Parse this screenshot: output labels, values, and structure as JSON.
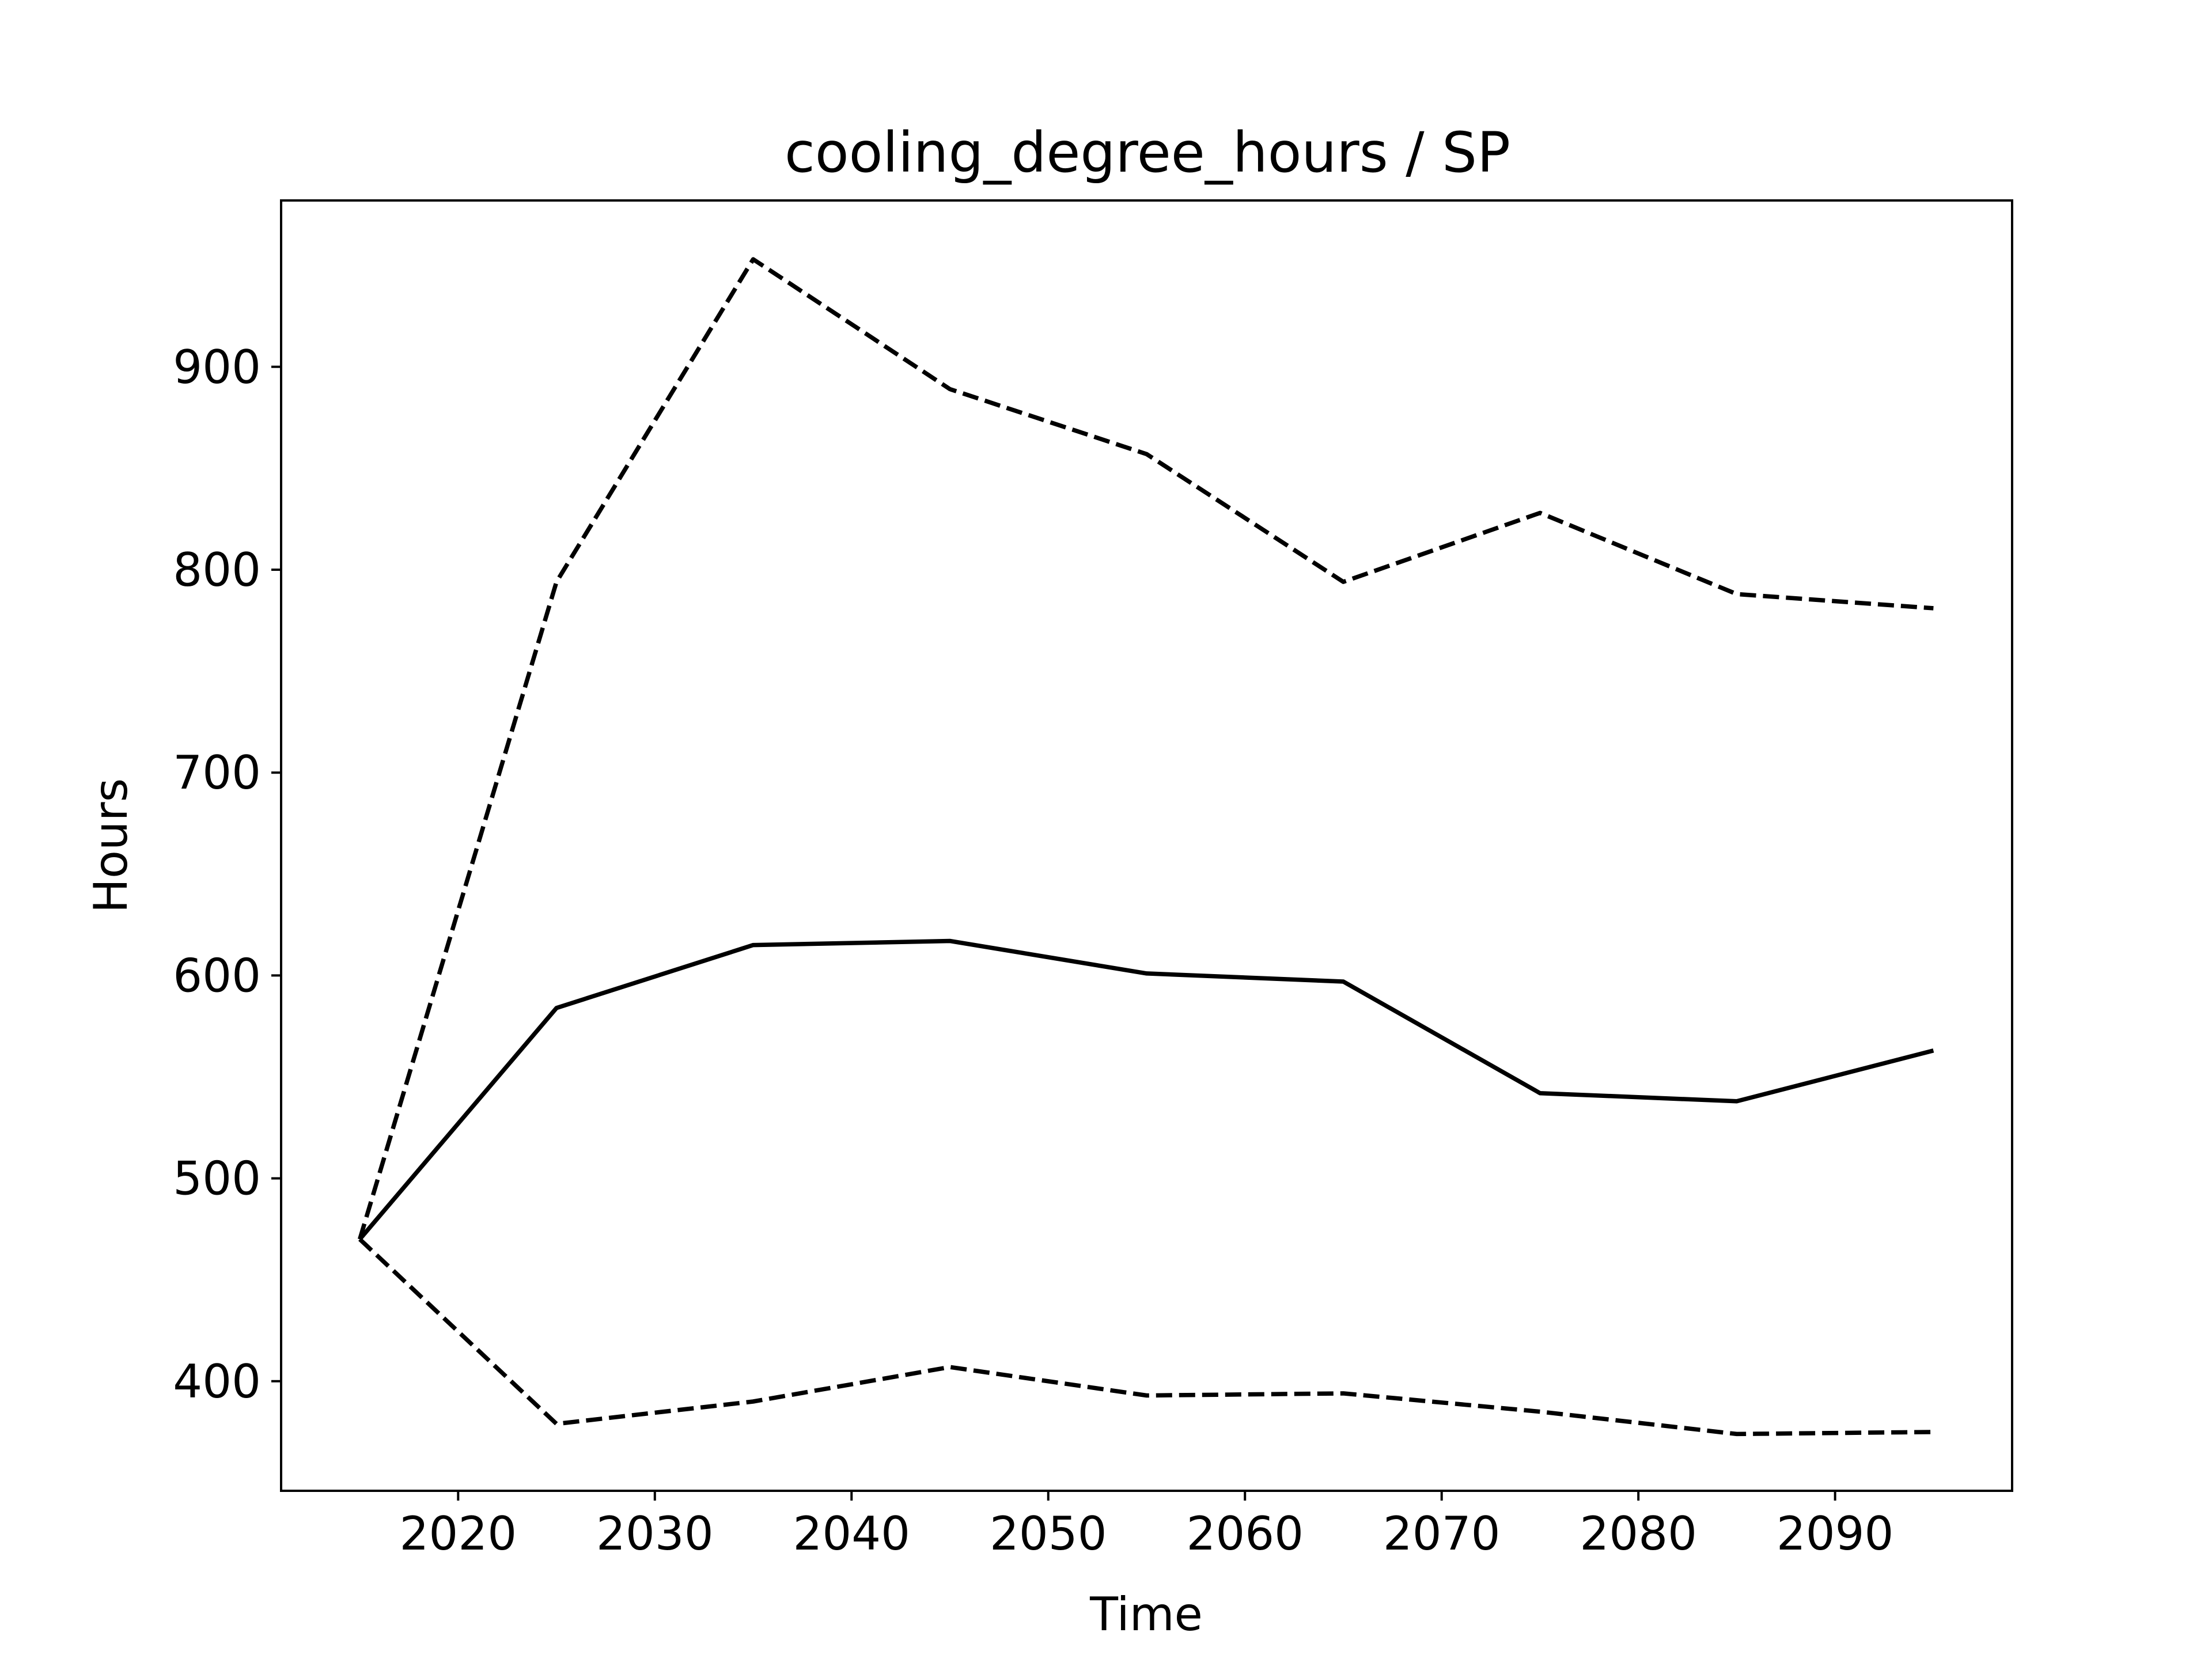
{
  "chart_data": {
    "type": "line",
    "title": "cooling_degree_hours / SP",
    "xlabel": "Time",
    "ylabel": "Hours",
    "xlim": [
      2011,
      2099
    ],
    "ylim": [
      346,
      982
    ],
    "xticks": [
      2020,
      2030,
      2040,
      2050,
      2060,
      2070,
      2080,
      2090
    ],
    "yticks": [
      400,
      500,
      600,
      700,
      800,
      900
    ],
    "x": [
      2015,
      2025,
      2035,
      2045,
      2055,
      2065,
      2075,
      2085,
      2095
    ],
    "series": [
      {
        "style": "dashed",
        "color": "#000000",
        "values": [
          470,
          794,
          953,
          889,
          857,
          794,
          828,
          788,
          781
        ]
      },
      {
        "style": "solid",
        "color": "#000000",
        "values": [
          470,
          584,
          615,
          617,
          601,
          597,
          542,
          538,
          563
        ]
      },
      {
        "style": "dashed",
        "color": "#000000",
        "values": [
          470,
          379,
          390,
          407,
          393,
          394,
          385,
          374,
          375
        ]
      }
    ],
    "grid": false,
    "legend": "none"
  }
}
